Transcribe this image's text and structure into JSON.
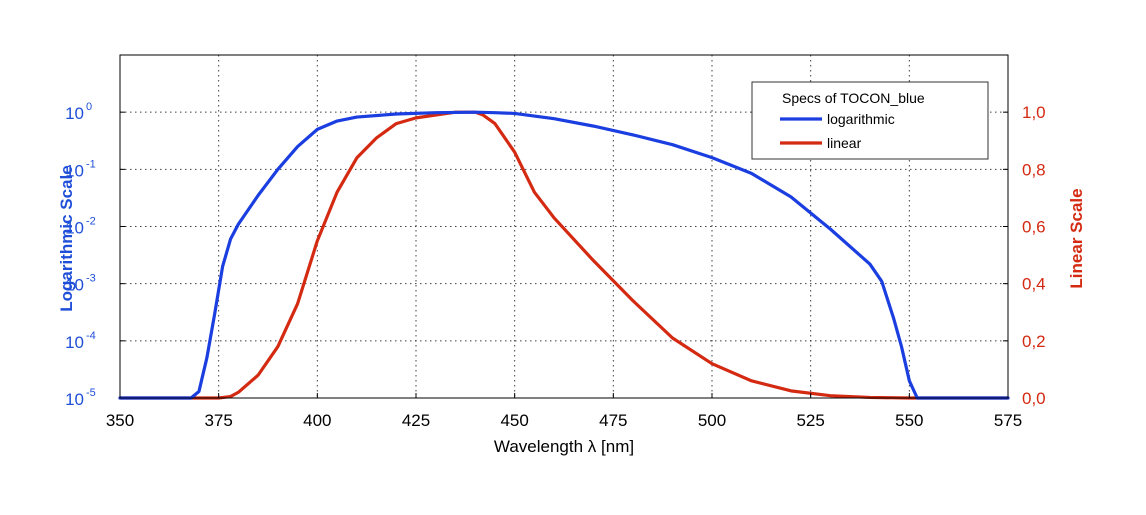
{
  "chart_data": {
    "type": "line",
    "xlabel": "Wavelength λ [nm]",
    "ylabel_left": "Logarithmic Scale",
    "ylabel_right": "Linear Scale",
    "x_range": [
      350,
      575
    ],
    "x_ticks": [
      "350",
      "375",
      "400",
      "425",
      "450",
      "475",
      "500",
      "525",
      "550",
      "575"
    ],
    "y_left_scale": "log",
    "y_left_range": [
      1e-05,
      10
    ],
    "y_left_ticks": [
      {
        "base": "10",
        "exp": "0"
      },
      {
        "base": "10",
        "exp": "-1"
      },
      {
        "base": "10",
        "exp": "-2"
      },
      {
        "base": "10",
        "exp": "-3"
      },
      {
        "base": "10",
        "exp": "-4"
      },
      {
        "base": "10",
        "exp": "-5"
      }
    ],
    "y_right_range": [
      0,
      1.2
    ],
    "y_right_ticks": [
      "1,0",
      "0,8",
      "0,6",
      "0,4",
      "0,2",
      "0,0"
    ],
    "grid": true,
    "legend": {
      "title": "Specs of TOCON_blue",
      "placement": "top-right",
      "entries": [
        "logarithmic",
        "linear"
      ]
    },
    "colors": {
      "log_axis": "#1f4fd8",
      "lin_axis": "#d42a12",
      "log_series": "#1a3ee0",
      "lin_series": "#d42a12"
    },
    "series": [
      {
        "name": "logarithmic",
        "axis": "left",
        "x": [
          350,
          368,
          370,
          372,
          374,
          376,
          378,
          380,
          385,
          390,
          395,
          400,
          405,
          410,
          420,
          430,
          440,
          445,
          450,
          460,
          470,
          480,
          490,
          500,
          510,
          520,
          530,
          540,
          543,
          546,
          548,
          550,
          552,
          560,
          575
        ],
        "y": [
          1e-05,
          1e-05,
          1.3e-05,
          5e-05,
          0.0003,
          0.002,
          0.006,
          0.011,
          0.035,
          0.1,
          0.25,
          0.5,
          0.7,
          0.82,
          0.93,
          0.98,
          1.0,
          0.98,
          0.95,
          0.77,
          0.57,
          0.4,
          0.27,
          0.16,
          0.085,
          0.033,
          0.009,
          0.0022,
          0.0011,
          0.00025,
          8e-05,
          2e-05,
          1e-05,
          1e-05,
          1e-05
        ]
      },
      {
        "name": "linear",
        "axis": "right",
        "x": [
          350,
          375,
          378,
          380,
          385,
          390,
          395,
          400,
          405,
          410,
          415,
          420,
          425,
          430,
          435,
          440,
          442,
          445,
          450,
          455,
          460,
          470,
          480,
          490,
          500,
          510,
          520,
          530,
          540,
          550,
          575
        ],
        "y": [
          0,
          0,
          0.005,
          0.02,
          0.08,
          0.18,
          0.33,
          0.55,
          0.72,
          0.84,
          0.91,
          0.96,
          0.98,
          0.99,
          1.0,
          1.0,
          0.99,
          0.96,
          0.86,
          0.72,
          0.63,
          0.48,
          0.34,
          0.21,
          0.12,
          0.06,
          0.025,
          0.008,
          0.002,
          0.0,
          0.0
        ]
      }
    ]
  }
}
